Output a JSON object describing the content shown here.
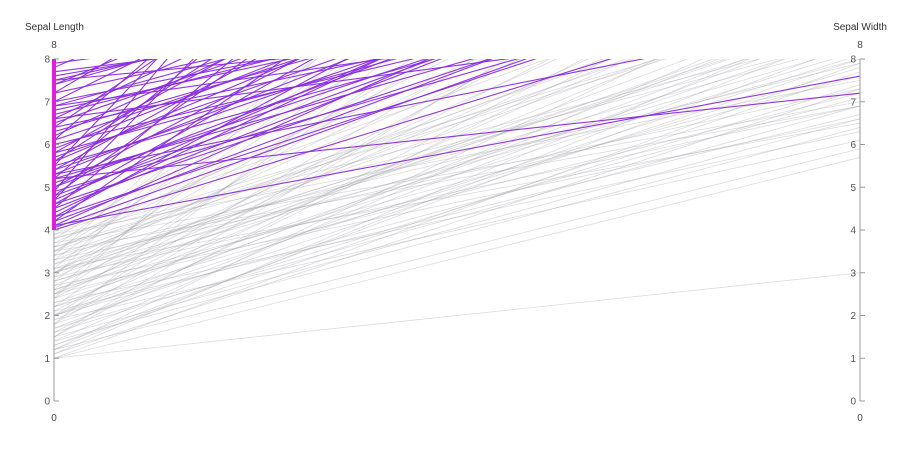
{
  "chart_data": {
    "type": "parallel_coordinates",
    "axes": [
      {
        "name": "Sepal Length",
        "range": [
          0,
          8
        ],
        "ticks": [
          0,
          1,
          2,
          3,
          4,
          5,
          6,
          7,
          8
        ],
        "range_labels": {
          "top": "8",
          "bottom": "0"
        }
      },
      {
        "name": "Sepal Width",
        "range": [
          0,
          8
        ],
        "ticks": [
          0,
          1,
          2,
          3,
          4,
          5,
          6,
          7,
          8
        ],
        "range_labels": {
          "top": "8",
          "bottom": "0"
        }
      }
    ],
    "brush": {
      "axis": "Sepal Length",
      "extent": [
        4,
        8
      ]
    },
    "colors": {
      "selected": "#8a2be2",
      "unselected": "#9a9aa2",
      "brush": "#e01ee0",
      "axis": "#999999"
    },
    "grid": false,
    "lines_selected": [
      [
        8.0,
        10.6
      ],
      [
        7.9,
        10.4
      ],
      [
        7.7,
        10.1
      ],
      [
        7.6,
        10.9
      ],
      [
        7.5,
        11.8
      ],
      [
        7.4,
        12.6
      ],
      [
        7.2,
        11.3
      ],
      [
        7.0,
        10.7
      ],
      [
        6.9,
        12.1
      ],
      [
        6.8,
        10.9
      ],
      [
        6.7,
        11.5
      ],
      [
        6.5,
        13.0
      ],
      [
        6.4,
        10.4
      ],
      [
        6.3,
        11.7
      ],
      [
        6.1,
        12.4
      ],
      [
        6.0,
        10.5
      ],
      [
        5.9,
        13.2
      ],
      [
        5.8,
        11.0
      ],
      [
        5.7,
        12.3
      ],
      [
        5.6,
        13.5
      ],
      [
        5.5,
        10.8
      ],
      [
        5.4,
        11.9
      ],
      [
        5.3,
        12.7
      ],
      [
        5.2,
        10.6
      ],
      [
        5.1,
        11.4
      ],
      [
        5.0,
        12.2
      ],
      [
        4.9,
        10.3
      ],
      [
        4.8,
        11.6
      ],
      [
        4.7,
        12.9
      ],
      [
        4.6,
        10.9
      ],
      [
        4.5,
        11.8
      ],
      [
        4.4,
        13.3
      ],
      [
        4.3,
        10.5
      ],
      [
        4.2,
        11.2
      ],
      [
        4.1,
        12.5
      ],
      [
        4.05,
        10.8
      ],
      [
        4.0,
        9.8
      ],
      [
        4.3,
        14.5
      ],
      [
        4.6,
        15.2
      ],
      [
        5.0,
        14.9
      ],
      [
        5.4,
        15.8
      ],
      [
        5.8,
        16.2
      ],
      [
        6.2,
        14.7
      ],
      [
        6.6,
        15.5
      ],
      [
        7.0,
        16.4
      ],
      [
        7.4,
        15.1
      ],
      [
        7.8,
        16.0
      ],
      [
        4.2,
        17.5
      ],
      [
        4.8,
        18.2
      ],
      [
        5.6,
        17.9
      ],
      [
        6.4,
        19.1
      ],
      [
        7.2,
        18.4
      ],
      [
        4.5,
        20.3
      ],
      [
        5.2,
        21.0
      ],
      [
        6.1,
        22.4
      ],
      [
        4.7,
        23.8
      ],
      [
        5.5,
        25.1
      ],
      [
        4.9,
        27.0
      ],
      [
        5.3,
        9.0
      ],
      [
        6.9,
        9.6
      ],
      [
        7.5,
        9.3
      ],
      [
        8.0,
        9.9
      ],
      [
        6.6,
        9.1
      ],
      [
        5.2,
        7.2
      ],
      [
        4.1,
        7.6
      ]
    ],
    "lines_unselected": [
      [
        3.9,
        10.6
      ],
      [
        3.8,
        9.4
      ],
      [
        3.7,
        11.9
      ],
      [
        3.6,
        8.5
      ],
      [
        3.5,
        12.7
      ],
      [
        3.4,
        9.8
      ],
      [
        3.3,
        10.2
      ],
      [
        3.2,
        11.5
      ],
      [
        3.1,
        8.8
      ],
      [
        3.0,
        9.7
      ],
      [
        3.0,
        12.4
      ],
      [
        2.9,
        10.1
      ],
      [
        2.8,
        8.3
      ],
      [
        2.7,
        11.2
      ],
      [
        2.6,
        9.2
      ],
      [
        2.5,
        10.8
      ],
      [
        2.4,
        12.1
      ],
      [
        2.3,
        8.6
      ],
      [
        2.2,
        9.9
      ],
      [
        2.1,
        11.7
      ],
      [
        2.0,
        8.1
      ],
      [
        2.0,
        10.4
      ],
      [
        1.9,
        9.3
      ],
      [
        1.8,
        12.8
      ],
      [
        1.7,
        8.9
      ],
      [
        1.6,
        10.9
      ],
      [
        1.5,
        11.4
      ],
      [
        1.4,
        9.6
      ],
      [
        1.3,
        8.4
      ],
      [
        1.2,
        10.3
      ],
      [
        1.1,
        9.1
      ],
      [
        1.0,
        7.9
      ],
      [
        1.0,
        5.7
      ],
      [
        1.0,
        3.0
      ],
      [
        1.1,
        7.3
      ],
      [
        1.2,
        8.7
      ],
      [
        1.3,
        7.7
      ],
      [
        1.5,
        6.6
      ],
      [
        1.6,
        7.4
      ],
      [
        1.8,
        8.0
      ],
      [
        2.0,
        7.1
      ],
      [
        2.2,
        7.8
      ],
      [
        2.4,
        8.2
      ],
      [
        2.6,
        7.6
      ],
      [
        2.8,
        9.0
      ],
      [
        3.0,
        8.0
      ],
      [
        3.2,
        8.4
      ],
      [
        3.4,
        7.9
      ],
      [
        3.6,
        9.4
      ],
      [
        3.8,
        8.6
      ],
      [
        3.9,
        7.5
      ],
      [
        1.4,
        6.4
      ],
      [
        1.7,
        6.9
      ],
      [
        2.1,
        6.7
      ],
      [
        2.5,
        7.2
      ],
      [
        2.9,
        6.9
      ],
      [
        3.3,
        7.3
      ],
      [
        3.7,
        7.0
      ],
      [
        1.2,
        5.9
      ],
      [
        1.9,
        6.1
      ],
      [
        2.3,
        6.3
      ],
      [
        2.7,
        6.6
      ],
      [
        3.1,
        6.5
      ],
      [
        3.5,
        6.9
      ],
      [
        2.0,
        13.5
      ],
      [
        2.5,
        14.2
      ],
      [
        3.0,
        13.8
      ],
      [
        3.5,
        14.7
      ],
      [
        1.5,
        13.1
      ],
      [
        2.2,
        15.3
      ],
      [
        2.8,
        15.9
      ],
      [
        3.3,
        16.4
      ],
      [
        3.8,
        15.0
      ],
      [
        1.8,
        16.8
      ],
      [
        2.6,
        17.5
      ],
      [
        3.1,
        18.3
      ],
      [
        3.6,
        17.1
      ],
      [
        2.4,
        19.6
      ],
      [
        3.4,
        20.2
      ],
      [
        2.9,
        21.4
      ],
      [
        3.0,
        9.0
      ],
      [
        2.0,
        9.0
      ],
      [
        2.5,
        9.5
      ],
      [
        3.5,
        10.0
      ]
    ]
  }
}
